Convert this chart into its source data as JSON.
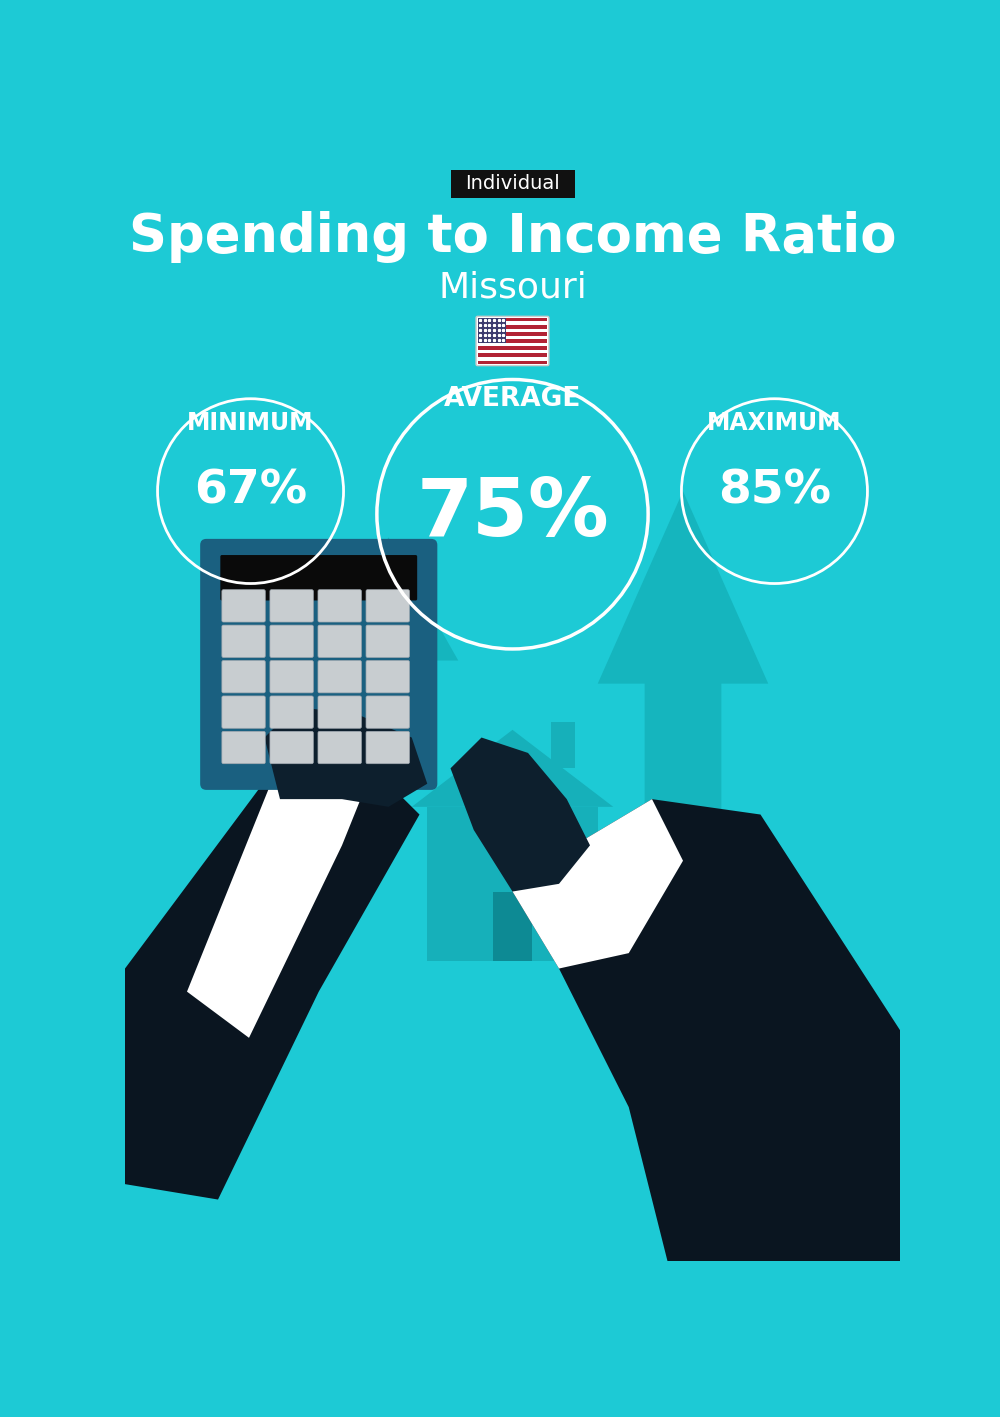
{
  "bg_color": "#1DCAD5",
  "title": "Spending to Income Ratio",
  "subtitle": "Missouri",
  "tag_label": "Individual",
  "tag_bg": "#111111",
  "tag_text_color": "#ffffff",
  "title_color": "#ffffff",
  "subtitle_color": "#ffffff",
  "label_min": "MINIMUM",
  "label_avg": "AVERAGE",
  "label_max": "MAXIMUM",
  "value_min": "67%",
  "value_avg": "75%",
  "value_max": "85%",
  "circle_color": "#ffffff",
  "text_color": "#ffffff",
  "label_fontsize": 17,
  "value_min_fontsize": 34,
  "value_avg_fontsize": 58,
  "value_max_fontsize": 34,
  "title_fontsize": 38,
  "subtitle_fontsize": 26,
  "tag_fontsize": 14,
  "hand_color": "#0d1f2d",
  "calc_body_color": "#1a6080",
  "calc_screen_color": "#0a0a0a",
  "calc_btn_light": "#d8dde0",
  "arrow_bg_color": "#18b8c0",
  "house_color": "#18b0ba",
  "door_color": "#0d8a94",
  "money_bag_color": "#18b0ba",
  "dollar_color": "#d4e86a",
  "sleeve_color": "#ffffff",
  "suit_color": "#0d1f2d"
}
